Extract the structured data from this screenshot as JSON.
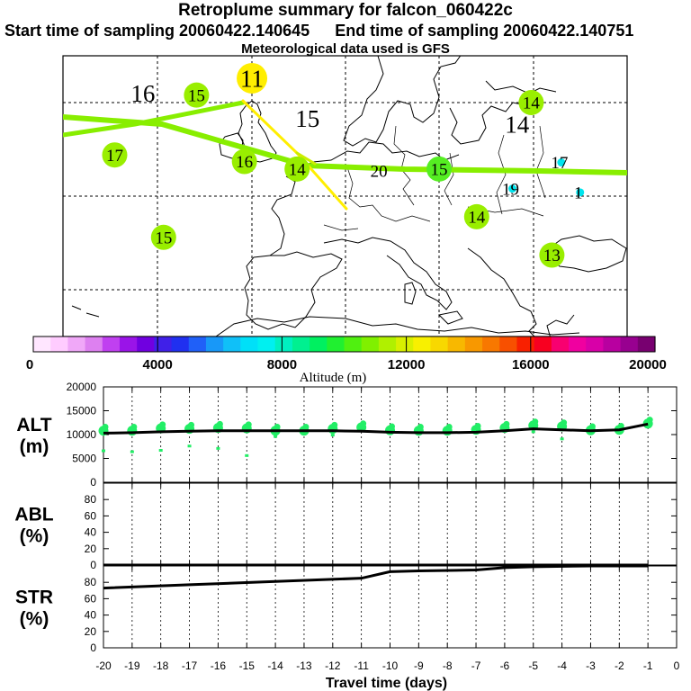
{
  "title": "Retroplume summary for falcon_060422c",
  "subtitle_start": "Start time of sampling 20060422.140645",
  "subtitle_end": "End time of sampling 20060422.140751",
  "meteo": "Meteorological data used is GFS",
  "colors": {
    "plume_green": "#88ee00",
    "plume_yellow": "#ffee00",
    "marker_green": "#22ee66",
    "cyan": "#00e5ee",
    "line": "#000000"
  },
  "chart_data": [
    {
      "type": "map",
      "name": "retroplume-map",
      "map_labels": [
        {
          "text": "16",
          "lon": -11.5,
          "lat": 58.0,
          "color": "none",
          "size": "large"
        },
        {
          "text": "15",
          "lon": -5.8,
          "lat": 57.8,
          "color": "#99ee00",
          "size": "normal"
        },
        {
          "text": "11",
          "lon": 0.1,
          "lat": 59.6,
          "color": "#ffee00",
          "size": "large"
        },
        {
          "text": "15",
          "lon": 6.0,
          "lat": 55.3,
          "color": "none",
          "size": "large"
        },
        {
          "text": "14",
          "lon": 29.8,
          "lat": 57.0,
          "color": "#99ee00",
          "size": "normal"
        },
        {
          "text": "14",
          "lon": 28.3,
          "lat": 54.7,
          "color": "none",
          "size": "large"
        },
        {
          "text": "17",
          "lon": -14.5,
          "lat": 51.4,
          "color": "#99ee00",
          "size": "normal"
        },
        {
          "text": "16",
          "lon": -0.7,
          "lat": 50.7,
          "color": "#99ee00",
          "size": "normal"
        },
        {
          "text": "14",
          "lon": 4.9,
          "lat": 49.9,
          "color": "#99ee00",
          "size": "normal"
        },
        {
          "text": "20",
          "lon": 13.6,
          "lat": 49.7,
          "color": "none",
          "size": "normal"
        },
        {
          "text": "15",
          "lon": 20.0,
          "lat": 49.9,
          "color": "#55ee22",
          "size": "normal"
        },
        {
          "text": "17",
          "lon": 33.0,
          "lat": 50.6,
          "color": "#00e5ee",
          "size": "small"
        },
        {
          "text": "19",
          "lon": 27.8,
          "lat": 47.8,
          "color": "#00e5ee",
          "size": "small"
        },
        {
          "text": "1",
          "lon": 35.0,
          "lat": 47.4,
          "color": "#00e5ee",
          "size": "small"
        },
        {
          "text": "14",
          "lon": 24.0,
          "lat": 44.8,
          "color": "#99ee00",
          "size": "normal"
        },
        {
          "text": "15",
          "lon": -9.3,
          "lat": 42.6,
          "color": "#99ee00",
          "size": "normal"
        },
        {
          "text": "13",
          "lon": 32.0,
          "lat": 40.7,
          "color": "#99ee00",
          "size": "normal"
        }
      ],
      "colorbar": {
        "xlabel": "Altitude (m)",
        "ticks": [
          0,
          4000,
          8000,
          12000,
          16000,
          20000
        ],
        "range": [
          0,
          20000
        ],
        "colors": [
          "#ffe6ff",
          "#ffccff",
          "#f0a8f8",
          "#dd80f0",
          "#c040f0",
          "#9a14e8",
          "#7000e0",
          "#4020e8",
          "#2030f0",
          "#2060f8",
          "#1898f8",
          "#10c0f8",
          "#00e0f8",
          "#00f0f0",
          "#00f0c0",
          "#00f090",
          "#00f060",
          "#20f030",
          "#50f010",
          "#80f000",
          "#b0f000",
          "#d8f000",
          "#f8f000",
          "#f8d800",
          "#f8b800",
          "#f89800",
          "#f87800",
          "#f85000",
          "#f82000",
          "#f80020",
          "#f80070",
          "#f000a0",
          "#d800a8",
          "#b800a0",
          "#980090",
          "#780070"
        ]
      }
    },
    {
      "type": "scatter",
      "name": "alt-panel",
      "ylabel": "ALT\n(m)",
      "ylim": [
        0,
        20000
      ],
      "yticks": [
        0,
        5000,
        10000,
        15000,
        20000
      ],
      "x": [
        -20,
        -19,
        -18,
        -17,
        -16,
        -15,
        -14,
        -13,
        -12,
        -11,
        -10,
        -9,
        -8,
        -7,
        -6,
        -5,
        -4,
        -3,
        -2,
        -1
      ],
      "median": [
        10300,
        10400,
        10600,
        10700,
        10800,
        10800,
        10800,
        10800,
        10800,
        10700,
        10500,
        10400,
        10400,
        10500,
        10800,
        11200,
        11000,
        10800,
        11000,
        12200
      ],
      "marker_values": [
        10800,
        10800,
        11300,
        11200,
        11400,
        11300,
        10800,
        10800,
        11200,
        11500,
        10900,
        10800,
        10800,
        11000,
        11400,
        11900,
        11700,
        10900,
        11000,
        12300
      ],
      "small_dots": [
        [
          -20,
          6500
        ],
        [
          -19,
          6300
        ],
        [
          -18,
          6600
        ],
        [
          -17,
          7500
        ],
        [
          -16,
          7000
        ],
        [
          -15,
          5500
        ],
        [
          -14,
          9500
        ],
        [
          -12,
          9800
        ],
        [
          -5,
          10500
        ],
        [
          -4,
          9000
        ]
      ]
    },
    {
      "type": "line",
      "name": "abl-panel",
      "ylabel": "ABL\n(%)",
      "ylim": [
        0,
        100
      ],
      "yticks": [
        0,
        20,
        40,
        60,
        80
      ],
      "x": [
        -20,
        -15,
        -10,
        -5,
        -1
      ],
      "values": [
        0,
        0,
        0,
        0,
        0
      ]
    },
    {
      "type": "line",
      "name": "str-panel",
      "ylabel": "STR\n(%)",
      "ylim": [
        0,
        100
      ],
      "yticks": [
        0,
        20,
        40,
        60,
        80
      ],
      "xlabel": "Travel time (days)",
      "xticks": [
        -20,
        -19,
        -18,
        -17,
        -16,
        -15,
        -14,
        -13,
        -12,
        -11,
        -10,
        -9,
        -8,
        -7,
        -6,
        -5,
        -4,
        -3,
        -2,
        -1,
        0
      ],
      "x": [
        -20,
        -17,
        -14,
        -11,
        -10,
        -9,
        -7,
        -6,
        -5,
        -3,
        -1
      ],
      "values": [
        73,
        77,
        81,
        85,
        93,
        94,
        95,
        98,
        99,
        100,
        100
      ]
    }
  ]
}
